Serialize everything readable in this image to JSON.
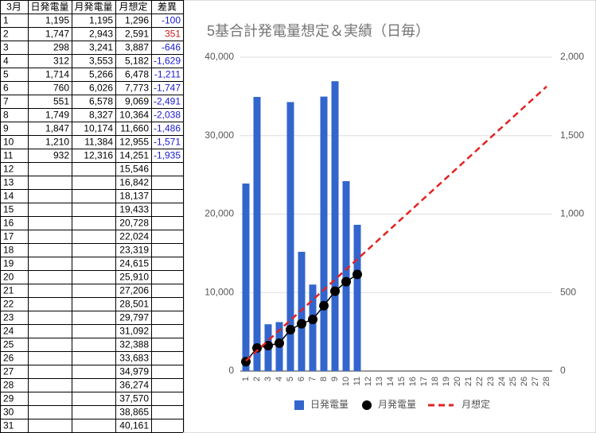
{
  "table": {
    "headers": [
      "3月",
      "日発電量",
      "月発電量",
      "月想定",
      "差異"
    ],
    "negative_color": "#1a1acc",
    "positive_color": "#cc1a1a",
    "rows": [
      {
        "day": "1",
        "daily": "1,195",
        "cumulative": "1,195",
        "plan": "1,296",
        "diff": "-100"
      },
      {
        "day": "2",
        "daily": "1,747",
        "cumulative": "2,943",
        "plan": "2,591",
        "diff": "351"
      },
      {
        "day": "3",
        "daily": "298",
        "cumulative": "3,241",
        "plan": "3,887",
        "diff": "-646"
      },
      {
        "day": "4",
        "daily": "312",
        "cumulative": "3,553",
        "plan": "5,182",
        "diff": "-1,629"
      },
      {
        "day": "5",
        "daily": "1,714",
        "cumulative": "5,266",
        "plan": "6,478",
        "diff": "-1,211"
      },
      {
        "day": "6",
        "daily": "760",
        "cumulative": "6,026",
        "plan": "7,773",
        "diff": "-1,747"
      },
      {
        "day": "7",
        "daily": "551",
        "cumulative": "6,578",
        "plan": "9,069",
        "diff": "-2,491"
      },
      {
        "day": "8",
        "daily": "1,749",
        "cumulative": "8,327",
        "plan": "10,364",
        "diff": "-2,038"
      },
      {
        "day": "9",
        "daily": "1,847",
        "cumulative": "10,174",
        "plan": "11,660",
        "diff": "-1,486"
      },
      {
        "day": "10",
        "daily": "1,210",
        "cumulative": "11,384",
        "plan": "12,955",
        "diff": "-1,571"
      },
      {
        "day": "11",
        "daily": "932",
        "cumulative": "12,316",
        "plan": "14,251",
        "diff": "-1,935"
      },
      {
        "day": "12",
        "plan": "15,546"
      },
      {
        "day": "13",
        "plan": "16,842"
      },
      {
        "day": "14",
        "plan": "18,137"
      },
      {
        "day": "15",
        "plan": "19,433"
      },
      {
        "day": "16",
        "plan": "20,728"
      },
      {
        "day": "17",
        "plan": "22,024"
      },
      {
        "day": "18",
        "plan": "23,319"
      },
      {
        "day": "19",
        "plan": "24,615"
      },
      {
        "day": "20",
        "plan": "25,910"
      },
      {
        "day": "21",
        "plan": "27,206"
      },
      {
        "day": "22",
        "plan": "28,501"
      },
      {
        "day": "23",
        "plan": "29,797"
      },
      {
        "day": "24",
        "plan": "31,092"
      },
      {
        "day": "25",
        "plan": "32,388"
      },
      {
        "day": "26",
        "plan": "33,683"
      },
      {
        "day": "27",
        "plan": "34,979"
      },
      {
        "day": "28",
        "plan": "36,274"
      },
      {
        "day": "29",
        "plan": "37,570"
      },
      {
        "day": "30",
        "plan": "38,865"
      },
      {
        "day": "31",
        "plan": "40,161"
      }
    ]
  },
  "chart_data": {
    "type": "combo",
    "title": "5基合計発電量想定＆実績（日毎）",
    "categories": [
      "1",
      "2",
      "3",
      "4",
      "5",
      "6",
      "7",
      "8",
      "9",
      "10",
      "11",
      "12",
      "13",
      "14",
      "15",
      "16",
      "17",
      "18",
      "19",
      "20",
      "21",
      "22",
      "23",
      "24",
      "25",
      "26",
      "27",
      "28"
    ],
    "ylim": [
      0,
      40000
    ],
    "yticks": [
      0,
      {
        "value": 10000,
        "label": "10,000"
      },
      {
        "value": 20000,
        "label": "20,000"
      },
      {
        "value": 30000,
        "label": "30,000"
      },
      {
        "value": 40000,
        "label": "40,000"
      }
    ],
    "y2lim": [
      0,
      2000
    ],
    "y2ticks": [
      0,
      500,
      {
        "value": 1000,
        "label": "1,000"
      },
      {
        "value": 1500,
        "label": "1,500"
      },
      {
        "value": 2000,
        "label": "2,000"
      }
    ],
    "grid": true,
    "legend": "bottom",
    "series": [
      {
        "name": "日発電量",
        "kind": "bar",
        "axis": "y2",
        "color": "#3366cc",
        "values": [
          1195,
          1747,
          298,
          312,
          1714,
          760,
          551,
          1749,
          1847,
          1210,
          932,
          null,
          null,
          null,
          null,
          null,
          null,
          null,
          null,
          null,
          null,
          null,
          null,
          null,
          null,
          null,
          null,
          null
        ]
      },
      {
        "name": "月発電量",
        "kind": "line",
        "markers": true,
        "color": "#000000",
        "values": [
          1195,
          2943,
          3241,
          3553,
          5266,
          6026,
          6578,
          8327,
          10174,
          11384,
          12316,
          null,
          null,
          null,
          null,
          null,
          null,
          null,
          null,
          null,
          null,
          null,
          null,
          null,
          null,
          null,
          null,
          null
        ]
      },
      {
        "name": "月想定",
        "kind": "line",
        "dashed": true,
        "color": "#e32222",
        "values": [
          1296,
          2591,
          3887,
          5182,
          6478,
          7773,
          9069,
          10364,
          11660,
          12955,
          14251,
          15546,
          16842,
          18137,
          19433,
          20728,
          22024,
          23319,
          24615,
          25910,
          27206,
          28501,
          29797,
          31092,
          32388,
          33683,
          34979,
          36274
        ]
      }
    ]
  }
}
